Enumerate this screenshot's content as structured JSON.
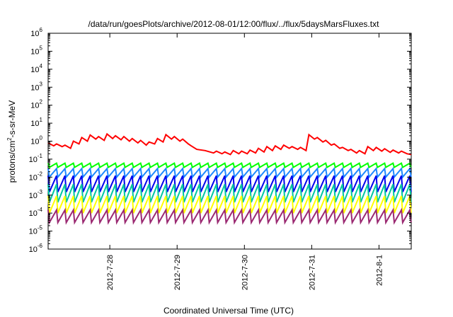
{
  "chart_data": {
    "type": "line",
    "title": "/data/run/goesPlots/archive/2012-08-01/12:00/flux/../flux/5daysMarsFluxes.txt",
    "xlabel": "Coordinated Universal Time (UTC)",
    "ylabel": "protons/cm²-s-sr-MeV",
    "ylabel_base": "protons/cm",
    "ylabel_sup": "2",
    "ylabel_rest": "-s-sr-MeV",
    "y_scale": "log",
    "ylim": [
      1e-06,
      1000000.0
    ],
    "xlim": [
      "2012-07-27 02:00",
      "2012-08-01 11:30"
    ],
    "x_ticks": [
      "2012-7-28",
      "2012-7-29",
      "2012-7-30",
      "2012-7-31",
      "2012-8-1"
    ],
    "y_ticks": [
      {
        "base": "10",
        "exp": "-6"
      },
      {
        "base": "10",
        "exp": "-5"
      },
      {
        "base": "10",
        "exp": "-4"
      },
      {
        "base": "10",
        "exp": "-3"
      },
      {
        "base": "10",
        "exp": "-2"
      },
      {
        "base": "10",
        "exp": "-1"
      },
      {
        "base": "10",
        "exp": "0"
      },
      {
        "base": "10",
        "exp": "1"
      },
      {
        "base": "10",
        "exp": "2"
      },
      {
        "base": "10",
        "exp": "3"
      },
      {
        "base": "10",
        "exp": "4"
      },
      {
        "base": "10",
        "exp": "5"
      },
      {
        "base": "10",
        "exp": "6"
      }
    ],
    "grid": false,
    "series": [
      {
        "color": "#ff0000",
        "sawtooth": false,
        "points": [
          [
            "2012-07-27 02:00",
            0.8
          ],
          [
            "2012-07-27 04:00",
            0.55
          ],
          [
            "2012-07-27 05:00",
            0.7
          ],
          [
            "2012-07-27 07:00",
            0.5
          ],
          [
            "2012-07-27 08:00",
            0.6
          ],
          [
            "2012-07-27 10:00",
            0.4
          ],
          [
            "2012-07-27 11:00",
            1.0
          ],
          [
            "2012-07-27 13:00",
            0.7
          ],
          [
            "2012-07-27 14:00",
            1.6
          ],
          [
            "2012-07-27 16:00",
            1.0
          ],
          [
            "2012-07-27 17:00",
            2.2
          ],
          [
            "2012-07-27 19:00",
            1.3
          ],
          [
            "2012-07-27 20:00",
            1.8
          ],
          [
            "2012-07-27 22:00",
            1.1
          ],
          [
            "2012-07-27 23:00",
            2.5
          ],
          [
            "2012-07-28 01:00",
            1.4
          ],
          [
            "2012-07-28 02:00",
            2.0
          ],
          [
            "2012-07-28 04:00",
            1.2
          ],
          [
            "2012-07-28 05:00",
            1.8
          ],
          [
            "2012-07-28 07:00",
            1.0
          ],
          [
            "2012-07-28 08:00",
            1.4
          ],
          [
            "2012-07-28 10:00",
            0.8
          ],
          [
            "2012-07-28 11:00",
            1.1
          ],
          [
            "2012-07-28 13:00",
            0.6
          ],
          [
            "2012-07-28 14:00",
            0.9
          ],
          [
            "2012-07-28 16:00",
            0.7
          ],
          [
            "2012-07-28 17:00",
            1.4
          ],
          [
            "2012-07-28 19:00",
            0.9
          ],
          [
            "2012-07-28 20:00",
            2.3
          ],
          [
            "2012-07-28 22:00",
            1.3
          ],
          [
            "2012-07-28 23:00",
            1.8
          ],
          [
            "2012-07-29 01:00",
            1.0
          ],
          [
            "2012-07-29 02:00",
            1.3
          ],
          [
            "2012-07-29 04:00",
            0.7
          ],
          [
            "2012-07-29 05:00",
            0.55
          ],
          [
            "2012-07-29 07:00",
            0.35
          ],
          [
            "2012-07-29 10:00",
            0.3
          ],
          [
            "2012-07-29 13:00",
            0.22
          ],
          [
            "2012-07-29 14:00",
            0.28
          ],
          [
            "2012-07-29 16:00",
            0.2
          ],
          [
            "2012-07-29 17:00",
            0.25
          ],
          [
            "2012-07-29 19:00",
            0.18
          ],
          [
            "2012-07-29 20:00",
            0.3
          ],
          [
            "2012-07-29 22:00",
            0.2
          ],
          [
            "2012-07-29 23:00",
            0.28
          ],
          [
            "2012-07-30 01:00",
            0.2
          ],
          [
            "2012-07-30 02:00",
            0.32
          ],
          [
            "2012-07-30 04:00",
            0.22
          ],
          [
            "2012-07-30 05:00",
            0.4
          ],
          [
            "2012-07-30 07:00",
            0.25
          ],
          [
            "2012-07-30 08:00",
            0.5
          ],
          [
            "2012-07-30 10:00",
            0.3
          ],
          [
            "2012-07-30 11:00",
            0.55
          ],
          [
            "2012-07-30 13:00",
            0.35
          ],
          [
            "2012-07-30 14:00",
            0.6
          ],
          [
            "2012-07-30 16:00",
            0.4
          ],
          [
            "2012-07-30 17:00",
            0.5
          ],
          [
            "2012-07-30 19:00",
            0.35
          ],
          [
            "2012-07-30 20:00",
            0.45
          ],
          [
            "2012-07-30 22:00",
            0.3
          ],
          [
            "2012-07-30 23:00",
            2.3
          ],
          [
            "2012-07-31 01:00",
            1.3
          ],
          [
            "2012-07-31 02:00",
            1.6
          ],
          [
            "2012-07-31 04:00",
            0.9
          ],
          [
            "2012-07-31 05:00",
            1.1
          ],
          [
            "2012-07-31 07:00",
            0.6
          ],
          [
            "2012-07-31 08:00",
            0.7
          ],
          [
            "2012-07-31 10:00",
            0.4
          ],
          [
            "2012-07-31 11:00",
            0.45
          ],
          [
            "2012-07-31 13:00",
            0.3
          ],
          [
            "2012-07-31 14:00",
            0.35
          ],
          [
            "2012-07-31 16:00",
            0.22
          ],
          [
            "2012-07-31 17:00",
            0.3
          ],
          [
            "2012-07-31 19:00",
            0.2
          ],
          [
            "2012-07-31 20:00",
            0.5
          ],
          [
            "2012-07-31 22:00",
            0.3
          ],
          [
            "2012-07-31 23:00",
            0.45
          ],
          [
            "2012-08-01 01:00",
            0.28
          ],
          [
            "2012-08-01 02:00",
            0.38
          ],
          [
            "2012-08-01 04:00",
            0.24
          ],
          [
            "2012-08-01 05:00",
            0.32
          ],
          [
            "2012-08-01 07:00",
            0.22
          ],
          [
            "2012-08-01 08:00",
            0.28
          ],
          [
            "2012-08-01 10:00",
            0.2
          ],
          [
            "2012-08-01 11:30",
            0.18
          ]
        ]
      },
      {
        "color": "#00ff00",
        "sawtooth": true,
        "high": 0.06,
        "low": 0.035,
        "period_hours": 3
      },
      {
        "color": "#1e88ff",
        "sawtooth": true,
        "high": 0.03,
        "low": 0.01,
        "period_hours": 3
      },
      {
        "color": "#0000ee",
        "sawtooth": true,
        "high": 0.012,
        "low": 0.0015,
        "period_hours": 3
      },
      {
        "color": "#00c8a0",
        "sawtooth": true,
        "high": 0.004,
        "low": 0.0004,
        "period_hours": 3
      },
      {
        "color": "#ffff00",
        "sawtooth": true,
        "high": 0.0009,
        "low": 0.0001,
        "period_hours": 3
      },
      {
        "color": "#9b2a72",
        "sawtooth": true,
        "high": 0.00015,
        "low": 3e-05,
        "period_hours": 3
      }
    ]
  }
}
